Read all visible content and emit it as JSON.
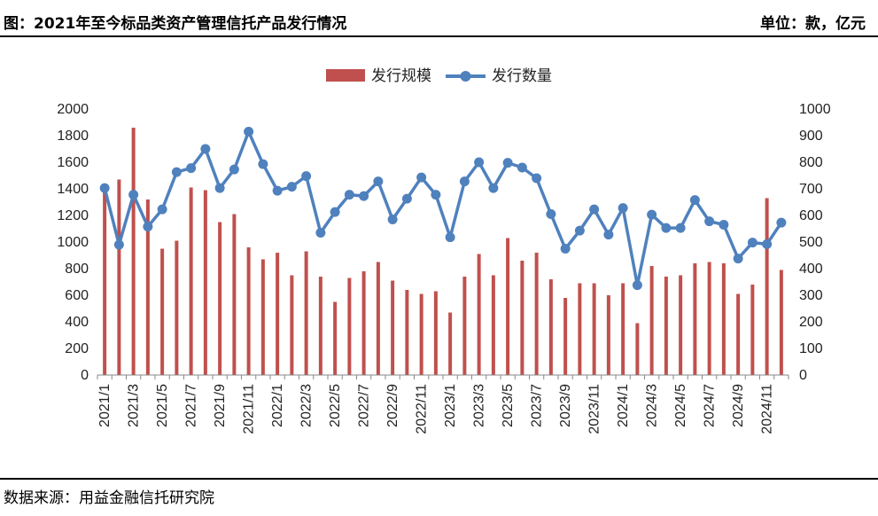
{
  "header": {
    "title": "图：2021年至今标品类资产管理信托产品发行情况",
    "unit": "单位：款，亿元"
  },
  "footer": {
    "source": "数据来源：用益金融信托研究院"
  },
  "colors": {
    "bar": "#C0504D",
    "line": "#4F81BD"
  },
  "chart_data": {
    "type": "bar",
    "categories": [
      "2021/1",
      "2021/2",
      "2021/3",
      "2021/4",
      "2021/5",
      "2021/6",
      "2021/7",
      "2021/8",
      "2021/9",
      "2021/10",
      "2021/11",
      "2021/12",
      "2022/1",
      "2022/2",
      "2022/3",
      "2022/4",
      "2022/5",
      "2022/6",
      "2022/7",
      "2022/8",
      "2022/9",
      "2022/10",
      "2022/11",
      "2022/12",
      "2023/1",
      "2023/2",
      "2023/3",
      "2023/4",
      "2023/5",
      "2023/6",
      "2023/7",
      "2023/8",
      "2023/9",
      "2023/10",
      "2023/11",
      "2023/12",
      "2024/1",
      "2024/2",
      "2024/3",
      "2024/4",
      "2024/5",
      "2024/6",
      "2024/7",
      "2024/8",
      "2024/9",
      "2024/10",
      "2024/11",
      "2024/12"
    ],
    "x_tick_labels": [
      "2021/1",
      "2021/3",
      "2021/5",
      "2021/7",
      "2021/9",
      "2021/11",
      "2022/1",
      "2022/3",
      "2022/5",
      "2022/7",
      "2022/9",
      "2022/11",
      "2023/1",
      "2023/3",
      "2023/5",
      "2023/7",
      "2023/9",
      "2023/11",
      "2024/1",
      "2024/3",
      "2024/5",
      "2024/7",
      "2024/9",
      "2024/11"
    ],
    "series": [
      {
        "name": "发行规模",
        "type": "bar",
        "axis": "left",
        "values": [
          1390,
          1470,
          1860,
          1320,
          950,
          1010,
          1410,
          1390,
          1150,
          1210,
          960,
          870,
          920,
          750,
          930,
          740,
          550,
          730,
          780,
          850,
          710,
          640,
          610,
          630,
          470,
          740,
          910,
          750,
          1030,
          860,
          920,
          720,
          580,
          690,
          690,
          600,
          690,
          390,
          820,
          740,
          750,
          840,
          850,
          840,
          610,
          680,
          1330,
          790
        ]
      },
      {
        "name": "发行数量",
        "type": "line",
        "axis": "right",
        "values": [
          703,
          490,
          678,
          558,
          623,
          763,
          778,
          850,
          703,
          773,
          915,
          793,
          693,
          708,
          748,
          535,
          613,
          678,
          673,
          728,
          585,
          663,
          743,
          678,
          518,
          728,
          800,
          703,
          798,
          780,
          740,
          605,
          475,
          543,
          623,
          528,
          628,
          338,
          603,
          553,
          553,
          658,
          578,
          565,
          438,
          498,
          492,
          573
        ]
      }
    ],
    "y_left": {
      "min": 0,
      "max": 2000,
      "ticks": [
        "0",
        "200",
        "400",
        "600",
        "800",
        "1000",
        "1200",
        "1400",
        "1600",
        "1800",
        "2000"
      ]
    },
    "y_right": {
      "min": 0,
      "max": 1000,
      "ticks": [
        "0",
        "100",
        "200",
        "300",
        "400",
        "500",
        "600",
        "700",
        "800",
        "900",
        "1000"
      ]
    },
    "legend": {
      "position": "top"
    },
    "grid": false
  }
}
